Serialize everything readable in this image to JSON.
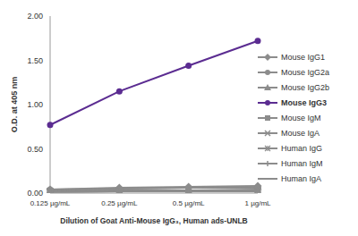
{
  "chart_data": {
    "type": "line",
    "x_label": "Dilution of Goat Anti-Mouse IgG₃, Human ads-UNLB",
    "y_label": "O.D. at 405 nm",
    "categories": [
      "0.125 µg/mL",
      "0.25 µg/mL",
      "0.5 µg/mL",
      "1 µg/mL"
    ],
    "ylim": [
      0,
      2
    ],
    "yticks": [
      {
        "value": 0,
        "label": "0.00"
      },
      {
        "value": 0.5,
        "label": "0.50"
      },
      {
        "value": 1,
        "label": "1.00"
      },
      {
        "value": 1.5,
        "label": "1.50"
      },
      {
        "value": 2,
        "label": "2.00"
      }
    ],
    "grid": false,
    "legend": "right",
    "series": [
      {
        "name": "Mouse IgG1",
        "color": "#8c8c8c",
        "marker": "diamond",
        "values": [
          0.04,
          0.06,
          0.07,
          0.08
        ]
      },
      {
        "name": "Mouse IgG2a",
        "color": "#8c8c8c",
        "marker": "circle",
        "values": [
          0.04,
          0.05,
          0.06,
          0.06
        ]
      },
      {
        "name": "Mouse IgG2b",
        "color": "#8c8c8c",
        "marker": "triangle",
        "values": [
          0.03,
          0.05,
          0.06,
          0.07
        ]
      },
      {
        "name": "Mouse IgG3",
        "color": "#5b2c91",
        "marker": "circle",
        "values": [
          0.77,
          1.15,
          1.44,
          1.72
        ]
      },
      {
        "name": "Mouse IgM",
        "color": "#8c8c8c",
        "marker": "square",
        "values": [
          0.02,
          0.03,
          0.03,
          0.04
        ]
      },
      {
        "name": "Mouse IgA",
        "color": "#8c8c8c",
        "marker": "cross",
        "values": [
          0.02,
          0.03,
          0.03,
          0.03
        ]
      },
      {
        "name": "Human IgG",
        "color": "#8c8c8c",
        "marker": "star",
        "values": [
          0.02,
          0.02,
          0.03,
          0.03
        ]
      },
      {
        "name": "Human IgM",
        "color": "#8c8c8c",
        "marker": "plus",
        "values": [
          0.01,
          0.02,
          0.02,
          0.02
        ]
      },
      {
        "name": "Human IgA",
        "color": "#8c8c8c",
        "marker": "none",
        "values": [
          0.01,
          0.02,
          0.02,
          0.02
        ]
      }
    ]
  }
}
